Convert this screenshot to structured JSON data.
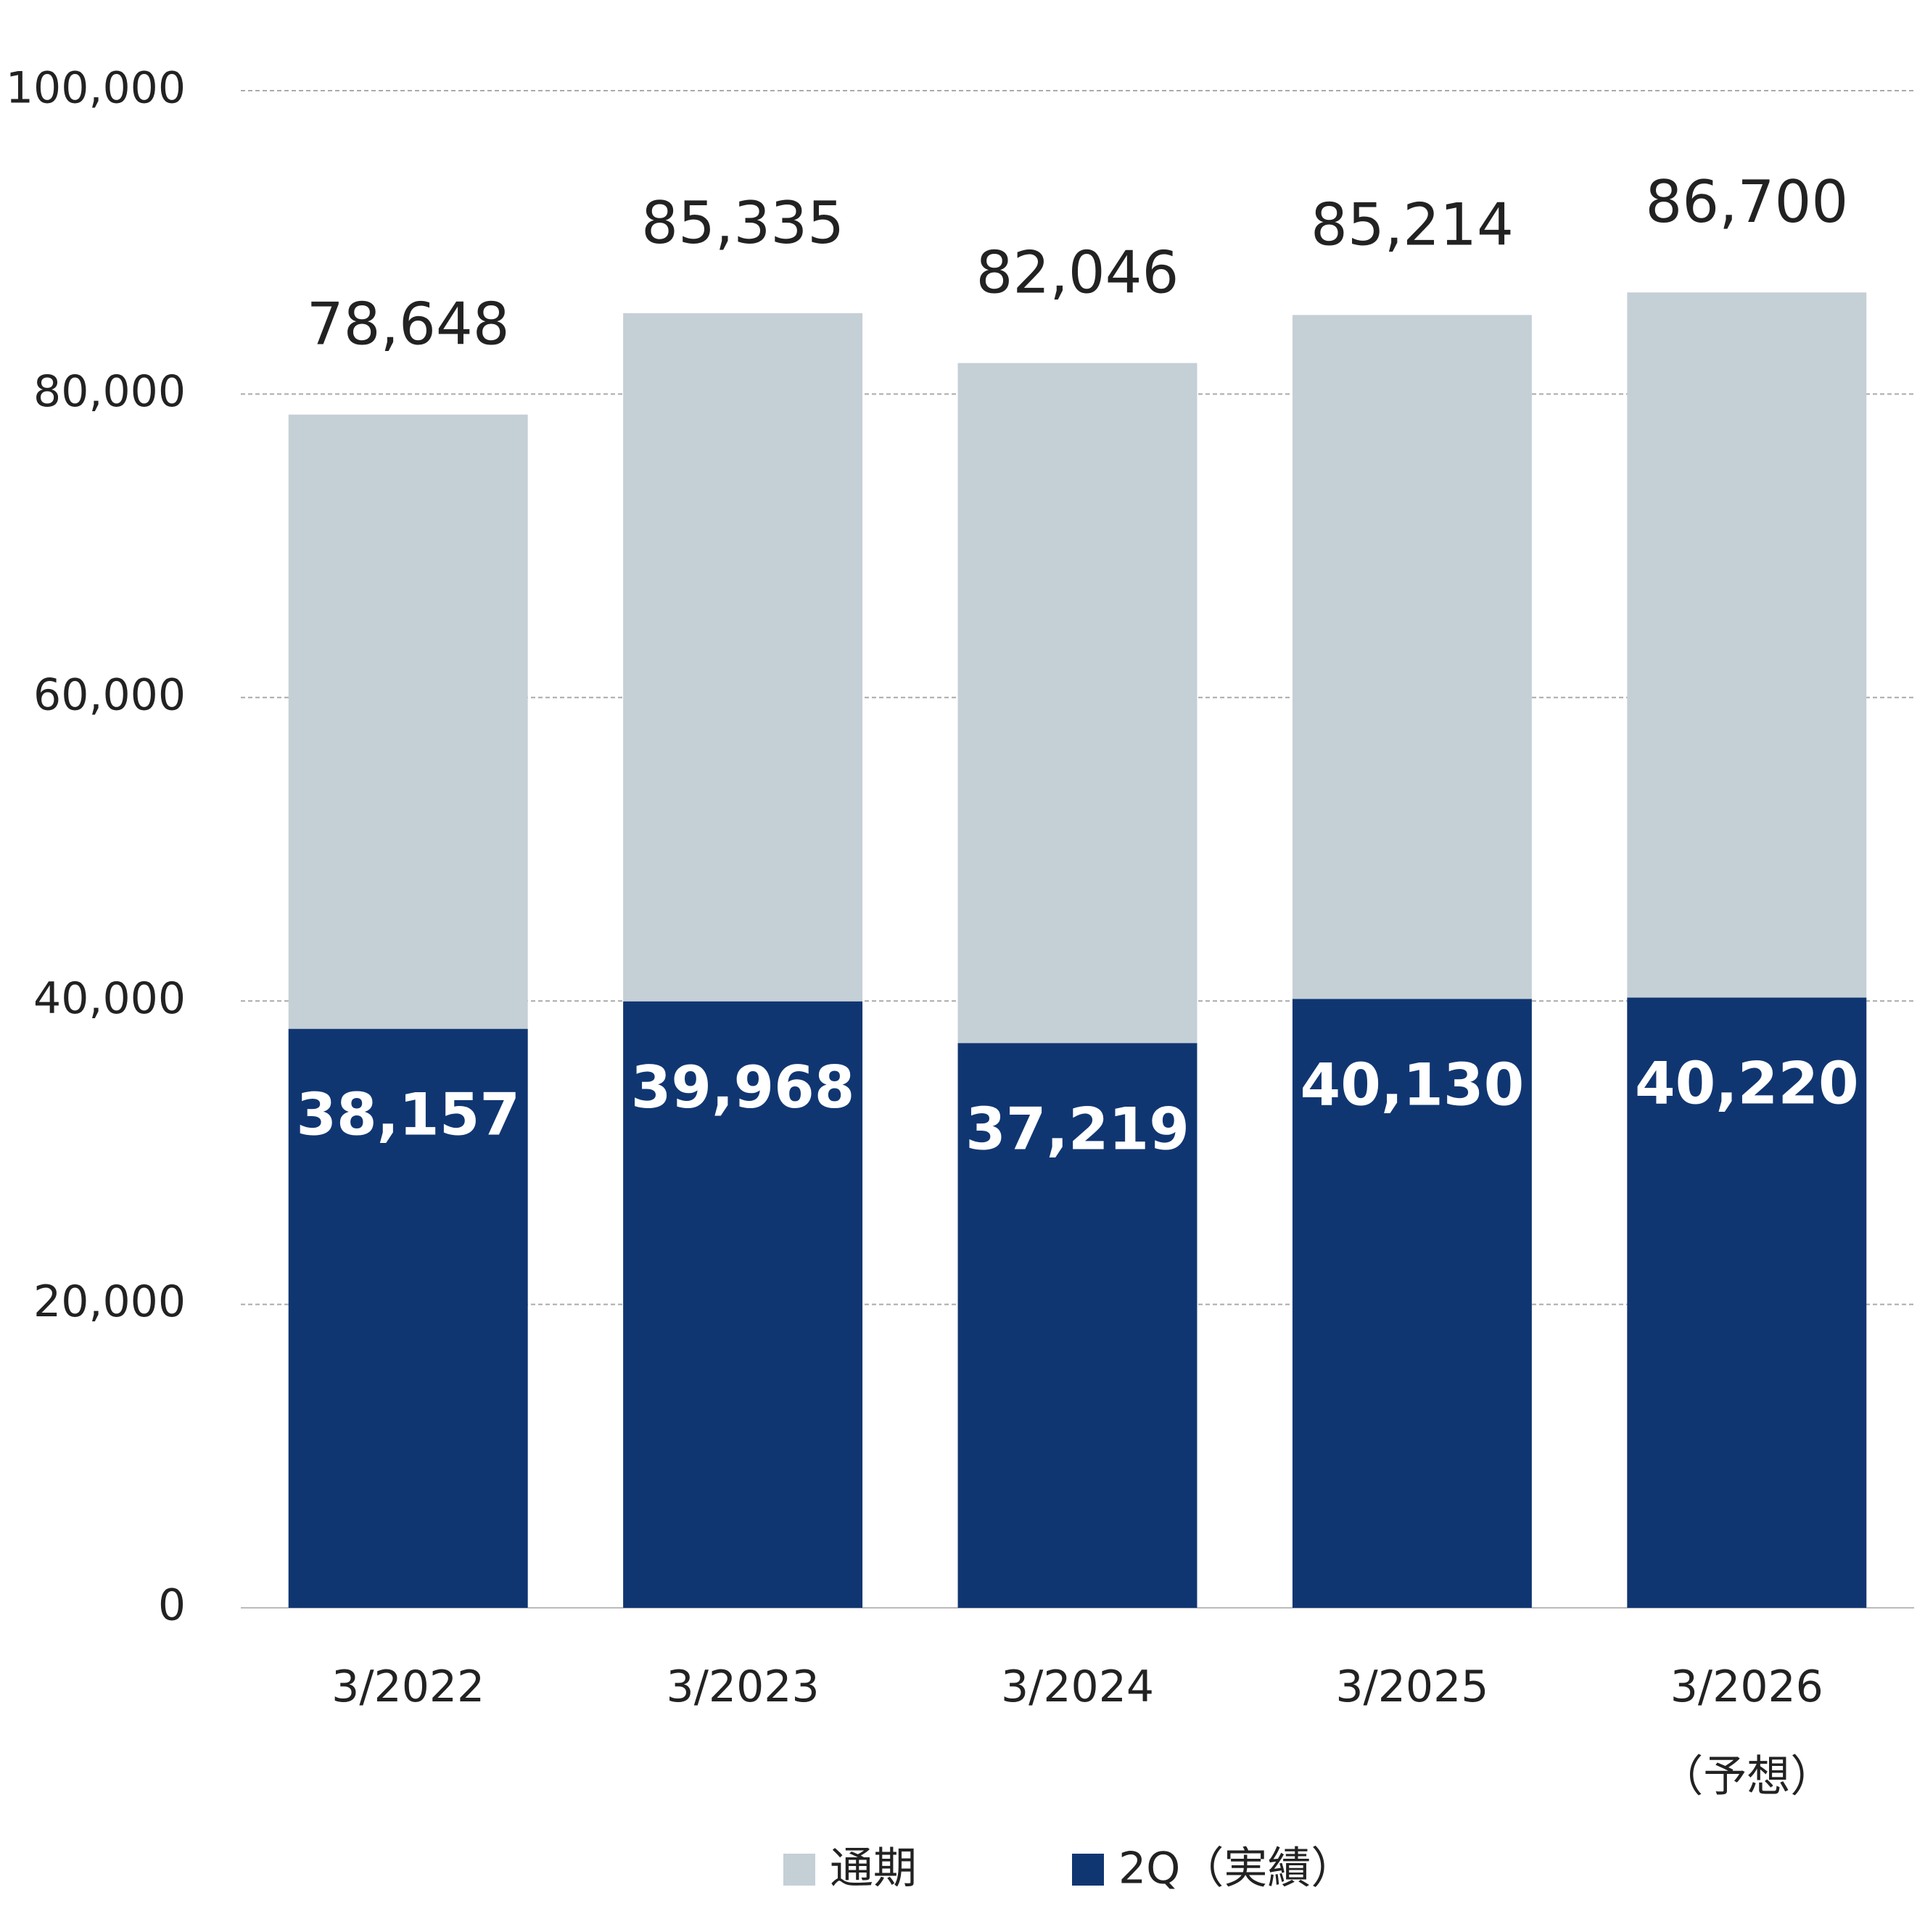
{
  "chart_data": {
    "type": "bar",
    "categories": [
      "3/2022",
      "3/2023",
      "3/2024",
      "3/2025",
      "3/2026\n（予想）"
    ],
    "series": [
      {
        "name": "通期",
        "color": "#c5cfd6",
        "values": [
          78648,
          85335,
          82046,
          85214,
          86700
        ],
        "value_labels": [
          "78,648",
          "85,335",
          "82,046",
          "85,214",
          "86,700"
        ]
      },
      {
        "name": "2Q（実績）",
        "color": "#103672",
        "values": [
          38157,
          39968,
          37219,
          40130,
          40220
        ],
        "value_labels": [
          "38,157",
          "39,968",
          "37,219",
          "40,130",
          "40,220"
        ]
      }
    ],
    "ylim": [
      0,
      100000
    ],
    "yticks": [
      0,
      {
        "value": 20000,
        "label": "20,000"
      },
      {
        "value": 40000,
        "label": "40,000"
      },
      {
        "value": 60000,
        "label": "60,000"
      },
      {
        "value": 80000,
        "label": "80,000"
      },
      {
        "value": 100000,
        "label": "100,000"
      }
    ],
    "grid": true,
    "legend": "bottom"
  }
}
